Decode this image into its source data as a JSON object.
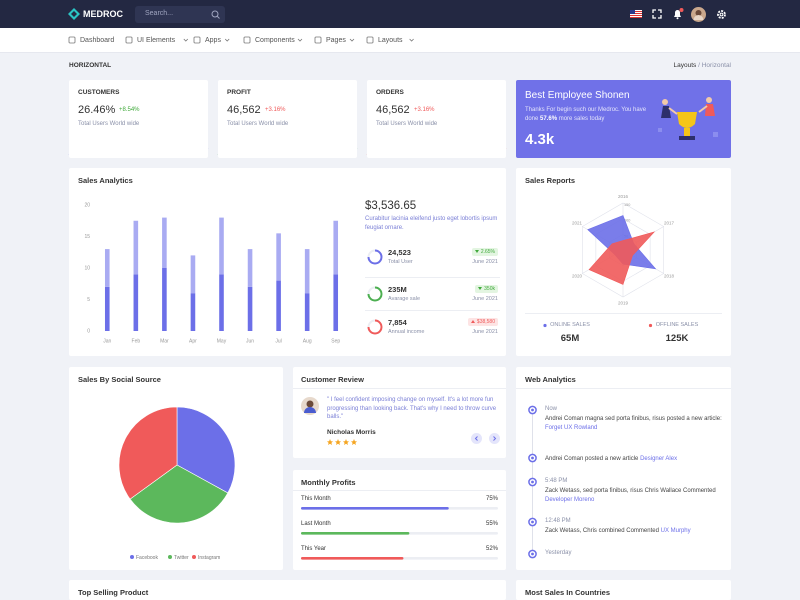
{
  "topbar": {
    "brand": "MEDROC",
    "search_placeholder": "Search..."
  },
  "nav": [
    "Dashboard",
    "UI Elements",
    "Apps",
    "Components",
    "Pages",
    "Layouts"
  ],
  "page": {
    "title": "HORIZONTAL",
    "breadcrumb": [
      "Layouts",
      "Horizontal"
    ]
  },
  "stats": [
    {
      "label": "CUSTOMERS",
      "value": "26.46%",
      "change": "+8.54%",
      "change_color": "#3fa93a",
      "note": "Total Users World wide",
      "color": "#6c6fe8"
    },
    {
      "label": "PROFIT",
      "value": "46,562",
      "change": "+3.16%",
      "change_color": "#f05a5a",
      "note": "Total Users World wide",
      "color": "#4caf50"
    },
    {
      "label": "ORDERS",
      "value": "46,562",
      "change": "+3.16%",
      "change_color": "#f05a5a",
      "note": "Total Users World wide",
      "color": "#f05a5a"
    }
  ],
  "employee": {
    "title": "Best Employee Shonen",
    "text_before": "Thanks For begin such our Medroc. You have done ",
    "text_bold": "57.6%",
    "text_after": " more sales today",
    "value": "4.3k"
  },
  "sales_analytics": {
    "title": "Sales Analytics",
    "chart": {
      "type": "bar",
      "stacked": true,
      "categories": [
        "Jan",
        "Feb",
        "Mar",
        "Apr",
        "May",
        "Jun",
        "Jul",
        "Aug",
        "Sep"
      ],
      "series": [
        {
          "color": "#6c6fe8",
          "values": [
            7,
            9,
            10,
            6,
            9,
            7,
            8,
            6,
            9
          ]
        },
        {
          "color": "#a9abf2",
          "values": [
            6,
            8.5,
            8,
            6,
            9,
            6,
            7.5,
            7,
            8.5
          ]
        }
      ],
      "ylim": [
        0,
        20
      ],
      "yticks": [
        0,
        5,
        10,
        15,
        20
      ]
    },
    "amount": "$3,536.65",
    "description": "Curabitur lacinia eleifend justo eget lobortis ipsum feugiat ornare.",
    "items": [
      {
        "value": "24,523",
        "label": "Total User",
        "badge": "2.65%",
        "trend": "up",
        "date": "June 2021",
        "color": "#6c6fe8"
      },
      {
        "value": "235M",
        "label": "Avarage sale",
        "badge": "350k",
        "trend": "up",
        "date": "June 2021",
        "color": "#4caf50"
      },
      {
        "value": "7,854",
        "label": "Annual income",
        "badge": "$38,580",
        "trend": "down",
        "date": "June 2021",
        "color": "#f05a5a"
      }
    ]
  },
  "sales_reports": {
    "title": "Sales Reports",
    "chart": {
      "type": "radar",
      "categories": [
        "2016",
        "2017",
        "2018",
        "2019",
        "2020",
        "2021"
      ],
      "series": [
        {
          "color": "#6c6fe8",
          "values": [
            110,
            40,
            120,
            45,
            30,
            130
          ]
        },
        {
          "color": "#f05a5a",
          "values": [
            30,
            115,
            35,
            110,
            125,
            40
          ]
        }
      ],
      "rlim": [
        0,
        150
      ],
      "rticks": [
        50,
        100,
        150
      ]
    },
    "online": {
      "label": "ONLINE SALES",
      "value": "65M",
      "color": "#6c6fe8"
    },
    "offline": {
      "label": "OFFLINE SALES",
      "value": "125K",
      "color": "#f05a5a"
    }
  },
  "social": {
    "title": "Sales By Social Source",
    "chart": {
      "type": "pie",
      "categories": [
        "Facebook",
        "Twitter",
        "Instagram"
      ],
      "values": [
        33,
        32,
        35
      ],
      "colors": [
        "#6c6fe8",
        "#5cb85c",
        "#f05a5a"
      ]
    }
  },
  "review": {
    "title": "Customer Review",
    "quote": "\" I feel confident imposing change on myself. It's a lot more fun progressing than looking back. That's why I need to throw curve balls.\"",
    "name": "Nicholas Morris"
  },
  "profits": {
    "title": "Monthly Profits",
    "items": [
      {
        "label": "This Month",
        "value": 75,
        "value_label": "75%",
        "color": "#6c6fe8"
      },
      {
        "label": "Last Month",
        "value": 55,
        "value_label": "55%",
        "color": "#5cb85c"
      },
      {
        "label": "This Year",
        "value": 52,
        "value_label": "52%",
        "color": "#f05a5a"
      }
    ]
  },
  "web_analytics": {
    "title": "Web Analytics",
    "events": [
      {
        "time": "Now",
        "text": "Andrei Coman magna sed porta finibus, risus posted a new article: ",
        "link": "Forget UX Rowland"
      },
      {
        "text": "Andrei Coman posted a new article ",
        "link": "Designer Alex"
      },
      {
        "time": "5:48 PM",
        "text": "Zack Wetass, sed porta finibus, risus Chris Wallace Commented ",
        "link": "Developer Moreno"
      },
      {
        "time": "12:48 PM",
        "text": "Zack Wetass, Chris combined Commented ",
        "link": "UX Murphy"
      },
      {
        "time": "Yesterday"
      }
    ]
  },
  "bottom": {
    "top_selling": "Top Selling Product",
    "countries": "Most Sales In Countries"
  }
}
